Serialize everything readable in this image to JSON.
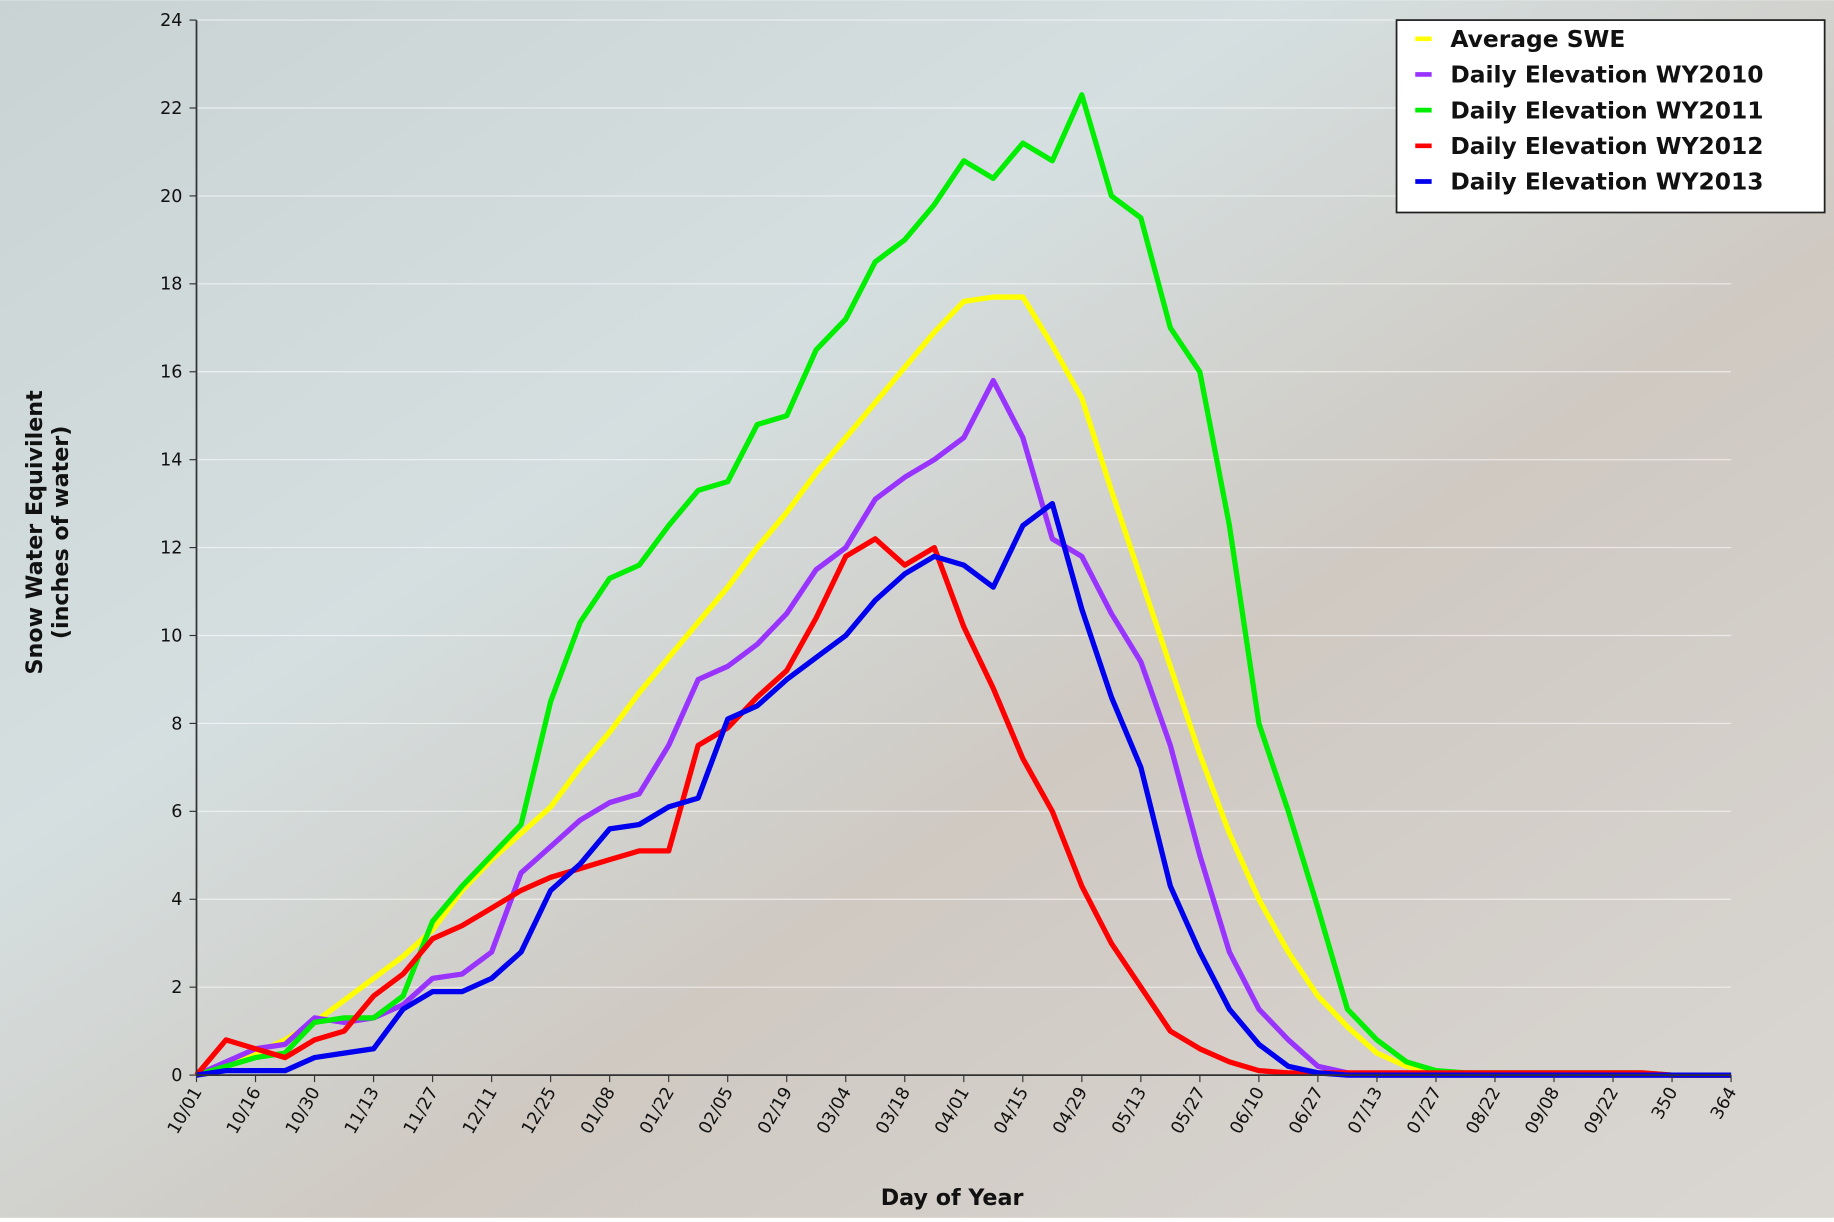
{
  "chart_data": {
    "type": "line",
    "xlabel": "Day of Year",
    "ylabel": [
      "Snow Water Equivilent",
      "(inches of water)"
    ],
    "x": [
      0,
      7,
      14,
      21,
      28,
      35,
      42,
      49,
      56,
      63,
      70,
      77,
      84,
      91,
      98,
      105,
      112,
      119,
      126,
      133,
      140,
      147,
      154,
      161,
      168,
      175,
      182,
      189,
      196,
      203,
      210,
      217,
      224,
      231,
      238,
      245,
      252,
      259,
      266,
      273,
      280,
      287,
      294,
      301,
      308,
      315,
      322,
      329,
      336,
      343,
      350,
      357,
      364
    ],
    "xlim": [
      0,
      364
    ],
    "xticks": [
      {
        "value": 0,
        "label": "10/01"
      },
      {
        "value": 14,
        "label": "10/16"
      },
      {
        "value": 28,
        "label": "10/30"
      },
      {
        "value": 42,
        "label": "11/13"
      },
      {
        "value": 56,
        "label": "11/27"
      },
      {
        "value": 70,
        "label": "12/11"
      },
      {
        "value": 84,
        "label": "12/25"
      },
      {
        "value": 98,
        "label": "01/08"
      },
      {
        "value": 112,
        "label": "01/22"
      },
      {
        "value": 126,
        "label": "02/05"
      },
      {
        "value": 140,
        "label": "02/19"
      },
      {
        "value": 154,
        "label": "03/04"
      },
      {
        "value": 168,
        "label": "03/18"
      },
      {
        "value": 182,
        "label": "04/01"
      },
      {
        "value": 196,
        "label": "04/15"
      },
      {
        "value": 210,
        "label": "04/29"
      },
      {
        "value": 224,
        "label": "05/13"
      },
      {
        "value": 238,
        "label": "05/27"
      },
      {
        "value": 252,
        "label": "06/10"
      },
      {
        "value": 266,
        "label": "06/27"
      },
      {
        "value": 280,
        "label": "07/13"
      },
      {
        "value": 294,
        "label": "07/27"
      },
      {
        "value": 308,
        "label": "08/22"
      },
      {
        "value": 322,
        "label": "09/08"
      },
      {
        "value": 336,
        "label": "09/22"
      },
      350,
      364
    ],
    "ylim": [
      0,
      24
    ],
    "yticks": [
      0,
      2,
      4,
      6,
      8,
      10,
      12,
      14,
      16,
      18,
      20,
      22,
      24
    ],
    "grid": true,
    "legend": "top-right",
    "series": [
      {
        "name": "Average SWE",
        "color": "#ffff00",
        "values": [
          0,
          0.2,
          0.5,
          0.8,
          1.2,
          1.7,
          2.2,
          2.7,
          3.3,
          4.2,
          4.9,
          5.5,
          6.1,
          7.0,
          7.8,
          8.7,
          9.5,
          10.3,
          11.1,
          12.0,
          12.8,
          13.7,
          14.5,
          15.3,
          16.1,
          16.9,
          17.6,
          17.7,
          17.7,
          16.6,
          15.4,
          13.3,
          11.3,
          9.3,
          7.3,
          5.5,
          4.0,
          2.8,
          1.8,
          1.1,
          0.5,
          0.2,
          0.05,
          0,
          0,
          0,
          0,
          0,
          0,
          0,
          0,
          0,
          0
        ]
      },
      {
        "name": "Daily Elevation WY2010",
        "color": "#9933ff",
        "values": [
          0,
          0.3,
          0.6,
          0.7,
          1.3,
          1.2,
          1.3,
          1.6,
          2.2,
          2.3,
          2.8,
          4.6,
          5.2,
          5.8,
          6.2,
          6.4,
          7.5,
          9.0,
          9.3,
          9.8,
          10.5,
          11.5,
          12.0,
          13.1,
          13.6,
          14.0,
          14.5,
          15.8,
          14.5,
          12.2,
          11.8,
          10.5,
          9.4,
          7.5,
          5.0,
          2.8,
          1.5,
          0.8,
          0.2,
          0.05,
          0,
          0,
          0,
          0,
          0,
          0,
          0,
          0,
          0,
          0,
          0,
          0,
          0
        ]
      },
      {
        "name": "Daily Elevation WY2011",
        "color": "#00ee00",
        "values": [
          0,
          0.2,
          0.4,
          0.5,
          1.2,
          1.3,
          1.3,
          1.8,
          3.5,
          4.3,
          5.0,
          5.7,
          8.5,
          10.3,
          11.3,
          11.6,
          12.5,
          13.3,
          13.5,
          14.8,
          15.0,
          16.5,
          17.2,
          18.5,
          19.0,
          19.8,
          20.8,
          20.4,
          21.2,
          20.8,
          22.3,
          20.0,
          19.5,
          17.0,
          16.0,
          12.5,
          8.0,
          6.0,
          3.8,
          1.5,
          0.8,
          0.3,
          0.1,
          0.05,
          0.05,
          0.05,
          0.05,
          0.05,
          0.05,
          0.05,
          0,
          0,
          0
        ]
      },
      {
        "name": "Daily Elevation WY2012",
        "color": "#ff0000",
        "values": [
          0,
          0.8,
          0.6,
          0.4,
          0.8,
          1.0,
          1.8,
          2.3,
          3.1,
          3.4,
          3.8,
          4.2,
          4.5,
          4.7,
          4.9,
          5.1,
          5.1,
          7.5,
          7.9,
          8.6,
          9.2,
          10.4,
          11.8,
          12.2,
          11.6,
          12.0,
          10.2,
          8.8,
          7.2,
          6.0,
          4.3,
          3.0,
          2.0,
          1.0,
          0.6,
          0.3,
          0.1,
          0.05,
          0.05,
          0.05,
          0.05,
          0.05,
          0.05,
          0.05,
          0.05,
          0.05,
          0.05,
          0.05,
          0.05,
          0.05,
          0,
          0,
          0
        ]
      },
      {
        "name": "Daily Elevation WY2013",
        "color": "#0000ee",
        "values": [
          0,
          0.1,
          0.1,
          0.1,
          0.4,
          0.5,
          0.6,
          1.5,
          1.9,
          1.9,
          2.2,
          2.8,
          4.2,
          4.8,
          5.6,
          5.7,
          6.1,
          6.3,
          8.1,
          8.4,
          9.0,
          9.5,
          10.0,
          10.8,
          11.4,
          11.8,
          11.6,
          11.1,
          12.5,
          13.0,
          10.6,
          8.6,
          7.0,
          4.3,
          2.8,
          1.5,
          0.7,
          0.2,
          0.05,
          0,
          0,
          0,
          0,
          0,
          0,
          0,
          0,
          0,
          0,
          0,
          0,
          0,
          0
        ]
      }
    ]
  }
}
